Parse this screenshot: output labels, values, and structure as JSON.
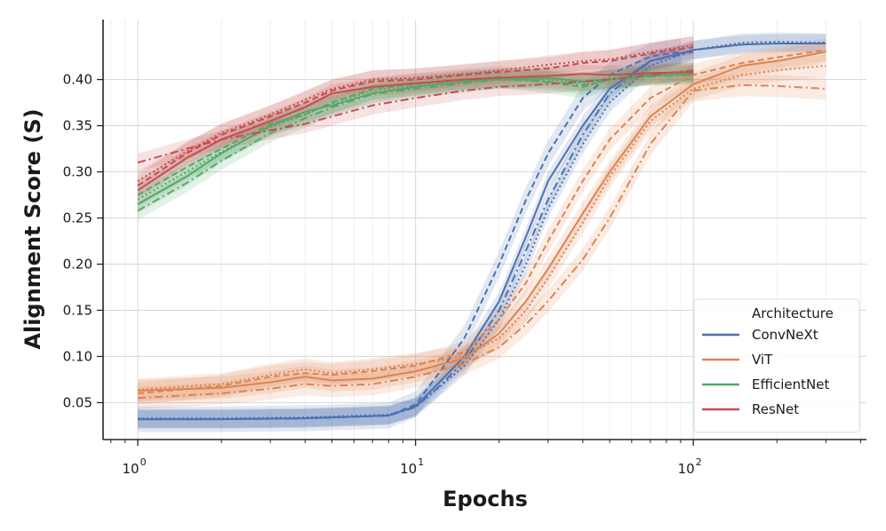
{
  "chart_data": {
    "type": "line",
    "xscale": "log",
    "xlabel": "Epochs",
    "ylabel": "Alignment Score (S)",
    "xlim": [
      0.75,
      420
    ],
    "ylim": [
      0.01,
      0.465
    ],
    "xticks": [
      {
        "value": 1,
        "base": "10",
        "exp": "0"
      },
      {
        "value": 10,
        "base": "10",
        "exp": "1"
      },
      {
        "value": 100,
        "base": "10",
        "exp": "2"
      }
    ],
    "yticks": [
      {
        "value": 0.05,
        "label": "0.05"
      },
      {
        "value": 0.1,
        "label": "0.10"
      },
      {
        "value": 0.15,
        "label": "0.15"
      },
      {
        "value": 0.2,
        "label": "0.20"
      },
      {
        "value": 0.25,
        "label": "0.25"
      },
      {
        "value": 0.3,
        "label": "0.30"
      },
      {
        "value": 0.35,
        "label": "0.35"
      },
      {
        "value": 0.4,
        "label": "0.40"
      }
    ],
    "grid": true,
    "legend": {
      "title": "Architecture",
      "position": "bottom-right",
      "entries": [
        {
          "name": "ConvNeXt",
          "color": "#4c72b0"
        },
        {
          "name": "ViT",
          "color": "#dd8452"
        },
        {
          "name": "EfficientNet",
          "color": "#55a868"
        },
        {
          "name": "ResNet",
          "color": "#c44e52"
        }
      ]
    },
    "series": [
      {
        "arch": "ConvNeXt",
        "style": "solid",
        "color": "#4c72b0",
        "band": 0.01,
        "x": [
          1,
          2,
          4,
          8,
          10,
          12,
          15,
          20,
          25,
          30,
          40,
          50,
          70,
          100,
          150,
          200,
          300
        ],
        "y": [
          0.032,
          0.032,
          0.033,
          0.036,
          0.046,
          0.07,
          0.1,
          0.16,
          0.23,
          0.29,
          0.35,
          0.39,
          0.42,
          0.432,
          0.438,
          0.439,
          0.439
        ]
      },
      {
        "arch": "ConvNeXt",
        "style": "dashed",
        "color": "#4c72b0",
        "band": 0.014,
        "x": [
          1,
          2,
          4,
          8,
          10,
          12,
          15,
          20,
          25,
          30,
          40,
          50,
          70,
          90
        ],
        "y": [
          0.032,
          0.032,
          0.033,
          0.036,
          0.048,
          0.08,
          0.12,
          0.2,
          0.27,
          0.32,
          0.38,
          0.405,
          0.425,
          0.43
        ]
      },
      {
        "arch": "ConvNeXt",
        "style": "dotted",
        "color": "#4c72b0",
        "band": 0.01,
        "x": [
          1,
          2,
          4,
          8,
          10,
          12,
          15,
          20,
          25,
          30,
          40,
          50,
          70,
          100,
          150,
          200,
          300
        ],
        "y": [
          0.033,
          0.033,
          0.034,
          0.037,
          0.045,
          0.065,
          0.09,
          0.14,
          0.2,
          0.26,
          0.33,
          0.375,
          0.415,
          0.432,
          0.44,
          0.441,
          0.44
        ]
      },
      {
        "arch": "ConvNeXt",
        "style": "dashdot",
        "color": "#4c72b0",
        "band": 0.01,
        "x": [
          1,
          2,
          4,
          8,
          10,
          12,
          15,
          20,
          25,
          30,
          40,
          50,
          70,
          100
        ],
        "y": [
          0.032,
          0.032,
          0.033,
          0.036,
          0.045,
          0.066,
          0.095,
          0.15,
          0.215,
          0.27,
          0.34,
          0.385,
          0.42,
          0.43
        ]
      },
      {
        "arch": "ViT",
        "style": "solid",
        "color": "#dd8452",
        "band": 0.012,
        "x": [
          1,
          2,
          3,
          4,
          5,
          7,
          10,
          15,
          20,
          25,
          30,
          40,
          50,
          70,
          100,
          150,
          200,
          300
        ],
        "y": [
          0.063,
          0.066,
          0.072,
          0.078,
          0.074,
          0.076,
          0.084,
          0.098,
          0.125,
          0.16,
          0.195,
          0.255,
          0.3,
          0.36,
          0.395,
          0.415,
          0.42,
          0.43
        ]
      },
      {
        "arch": "ViT",
        "style": "dashed",
        "color": "#dd8452",
        "band": 0.012,
        "x": [
          1,
          2,
          3,
          4,
          5,
          7,
          10,
          15,
          20,
          25,
          30,
          40,
          50,
          70,
          100,
          150,
          200,
          300
        ],
        "y": [
          0.06,
          0.068,
          0.078,
          0.082,
          0.08,
          0.084,
          0.09,
          0.105,
          0.14,
          0.18,
          0.225,
          0.29,
          0.335,
          0.38,
          0.405,
          0.418,
          0.424,
          0.432
        ]
      },
      {
        "arch": "ViT",
        "style": "dotted",
        "color": "#dd8452",
        "band": 0.012,
        "x": [
          1,
          2,
          3,
          4,
          5,
          7,
          10,
          15,
          20,
          25,
          30,
          40,
          50,
          70,
          100,
          150,
          200,
          300
        ],
        "y": [
          0.064,
          0.07,
          0.08,
          0.086,
          0.082,
          0.086,
          0.092,
          0.1,
          0.12,
          0.15,
          0.185,
          0.245,
          0.295,
          0.355,
          0.39,
          0.405,
          0.41,
          0.415
        ]
      },
      {
        "arch": "ViT",
        "style": "dashdot",
        "color": "#dd8452",
        "band": 0.012,
        "x": [
          1,
          2,
          3,
          4,
          5,
          7,
          10,
          15,
          20,
          25,
          30,
          40,
          50,
          70,
          100,
          150,
          200,
          300
        ],
        "y": [
          0.055,
          0.06,
          0.065,
          0.07,
          0.068,
          0.07,
          0.078,
          0.092,
          0.11,
          0.135,
          0.16,
          0.205,
          0.25,
          0.33,
          0.388,
          0.394,
          0.393,
          0.39
        ]
      },
      {
        "arch": "EfficientNet",
        "style": "solid",
        "color": "#55a868",
        "band": 0.01,
        "x": [
          1,
          1.5,
          2,
          3,
          4,
          5,
          7,
          10,
          15,
          20,
          30,
          40,
          50,
          70,
          100
        ],
        "y": [
          0.265,
          0.295,
          0.32,
          0.35,
          0.365,
          0.372,
          0.385,
          0.392,
          0.398,
          0.4,
          0.402,
          0.398,
          0.4,
          0.404,
          0.406
        ]
      },
      {
        "arch": "EfficientNet",
        "style": "dashed",
        "color": "#55a868",
        "band": 0.012,
        "x": [
          1,
          1.5,
          2,
          3,
          4,
          5,
          7,
          10,
          15,
          20,
          30,
          40,
          50,
          70,
          100
        ],
        "y": [
          0.275,
          0.305,
          0.325,
          0.352,
          0.362,
          0.375,
          0.39,
          0.395,
          0.4,
          0.403,
          0.397,
          0.392,
          0.4,
          0.406,
          0.409
        ]
      },
      {
        "arch": "EfficientNet",
        "style": "dotted",
        "color": "#55a868",
        "band": 0.01,
        "x": [
          1,
          1.5,
          2,
          3,
          4,
          5,
          7,
          10,
          15,
          20,
          30,
          40,
          50,
          70,
          100
        ],
        "y": [
          0.27,
          0.3,
          0.322,
          0.348,
          0.362,
          0.374,
          0.388,
          0.393,
          0.4,
          0.402,
          0.4,
          0.396,
          0.402,
          0.405,
          0.408
        ]
      },
      {
        "arch": "EfficientNet",
        "style": "dashdot",
        "color": "#55a868",
        "band": 0.01,
        "x": [
          1,
          1.5,
          2,
          3,
          4,
          5,
          7,
          10,
          15,
          20,
          30,
          40,
          50,
          70,
          100
        ],
        "y": [
          0.258,
          0.288,
          0.312,
          0.342,
          0.358,
          0.37,
          0.384,
          0.39,
          0.396,
          0.4,
          0.398,
          0.394,
          0.4,
          0.403,
          0.405
        ]
      },
      {
        "arch": "ResNet",
        "style": "solid",
        "color": "#c44e52",
        "band": 0.01,
        "x": [
          1,
          1.5,
          2,
          3,
          4,
          5,
          7,
          10,
          15,
          20,
          30,
          40,
          50,
          70,
          100
        ],
        "y": [
          0.28,
          0.315,
          0.335,
          0.355,
          0.37,
          0.385,
          0.392,
          0.396,
          0.4,
          0.402,
          0.404,
          0.406,
          0.405,
          0.407,
          0.408
        ]
      },
      {
        "arch": "ResNet",
        "style": "dashed",
        "color": "#c44e52",
        "band": 0.012,
        "x": [
          1,
          1.5,
          2,
          3,
          4,
          5,
          7,
          10,
          15,
          20,
          30,
          40,
          50,
          70,
          100
        ],
        "y": [
          0.285,
          0.32,
          0.34,
          0.36,
          0.375,
          0.388,
          0.398,
          0.4,
          0.405,
          0.408,
          0.412,
          0.418,
          0.42,
          0.428,
          0.435
        ]
      },
      {
        "arch": "ResNet",
        "style": "dotted",
        "color": "#c44e52",
        "band": 0.01,
        "x": [
          1,
          1.5,
          2,
          3,
          4,
          5,
          7,
          10,
          15,
          20,
          30,
          40,
          50,
          70,
          100
        ],
        "y": [
          0.29,
          0.322,
          0.342,
          0.362,
          0.378,
          0.39,
          0.4,
          0.402,
          0.406,
          0.41,
          0.416,
          0.42,
          0.422,
          0.43,
          0.437
        ]
      },
      {
        "arch": "ResNet",
        "style": "dashdot",
        "color": "#c44e52",
        "band": 0.01,
        "x": [
          1,
          1.5,
          2,
          3,
          4,
          5,
          7,
          10,
          15,
          20,
          30,
          40,
          50,
          70,
          100
        ],
        "y": [
          0.31,
          0.325,
          0.335,
          0.345,
          0.352,
          0.36,
          0.372,
          0.38,
          0.388,
          0.392,
          0.395,
          0.398,
          0.4,
          0.405,
          0.41
        ]
      }
    ]
  }
}
